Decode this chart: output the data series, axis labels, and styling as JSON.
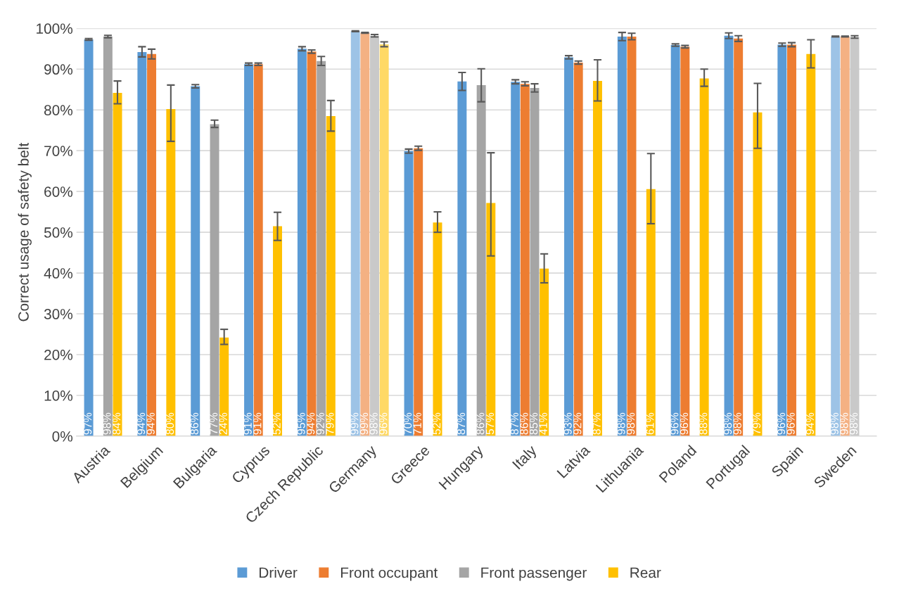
{
  "chart_data": {
    "type": "bar",
    "ylabel": "Correct usage of safety belt",
    "categories": [
      "Austria",
      "Belgium",
      "Bulgaria",
      "Cyprus",
      "Czech Republic",
      "Germany",
      "Greece",
      "Hungary",
      "Italy",
      "Latvia",
      "Lithuania",
      "Poland",
      "Portugal",
      "Spain",
      "Sweden"
    ],
    "series": [
      {
        "name": "Driver",
        "color": "#5b9bd5",
        "colors": [
          "#5b9bd5",
          "#5b9bd5",
          "#5b9bd5",
          "#5b9bd5",
          "#5b9bd5",
          "#9dc3e6",
          "#5b9bd5",
          "#5b9bd5",
          "#5b9bd5",
          "#5b9bd5",
          "#5b9bd5",
          "#5b9bd5",
          "#5b9bd5",
          "#5b9bd5",
          "#9dc3e6"
        ],
        "values": [
          97.3,
          94.2,
          85.8,
          91.2,
          95.0,
          99.3,
          69.9,
          87.0,
          86.9,
          92.9,
          98.0,
          95.9,
          98.2,
          96.0,
          98.0
        ],
        "errors": [
          0.2,
          [
            93.0,
            95.5
          ],
          0.4,
          0.3,
          0.5,
          0.1,
          0.5,
          [
            84.8,
            89.2
          ],
          0.5,
          0.4,
          1.0,
          0.3,
          0.7,
          0.4,
          0.1
        ],
        "value_labels": [
          "97%",
          "94%",
          "86%",
          "91%",
          "95%",
          "99%",
          "70%",
          "87%",
          "87%",
          "93%",
          "98%",
          "96%",
          "98%",
          "96%",
          "98%"
        ]
      },
      {
        "name": "Front occupant",
        "color": "#ed7d31",
        "colors": [
          "#ed7d31",
          "#ed7d31",
          "#ed7d31",
          "#ed7d31",
          "#ed7d31",
          "#f4b183",
          "#ed7d31",
          "#ed7d31",
          "#ed7d31",
          "#ed7d31",
          "#ed7d31",
          "#ed7d31",
          "#ed7d31",
          "#ed7d31",
          "#f4b183"
        ],
        "values": [
          null,
          93.7,
          null,
          91.2,
          94.3,
          98.9,
          70.6,
          null,
          86.4,
          91.6,
          98.0,
          95.5,
          97.5,
          96.0,
          98.0
        ],
        "errors": [
          null,
          [
            92.5,
            94.9
          ],
          null,
          0.3,
          0.4,
          0.1,
          0.5,
          null,
          0.5,
          0.4,
          0.8,
          0.3,
          0.7,
          0.5,
          0.1
        ],
        "value_labels": [
          null,
          "94%",
          null,
          "91%",
          "94%",
          "99%",
          "71%",
          null,
          "86%",
          "92%",
          "98%",
          "96%",
          "98%",
          "96%",
          "98%"
        ]
      },
      {
        "name": "Front passenger",
        "color": "#a5a5a5",
        "colors": [
          "#a5a5a5",
          "#a5a5a5",
          "#a5a5a5",
          "#a5a5a5",
          "#a5a5a5",
          "#c9c9c9",
          "#a5a5a5",
          "#a5a5a5",
          "#a5a5a5",
          "#a5a5a5",
          "#a5a5a5",
          "#a5a5a5",
          "#a5a5a5",
          "#a5a5a5",
          "#c9c9c9"
        ],
        "values": [
          98.0,
          null,
          76.5,
          null,
          92.0,
          98.2,
          null,
          86.1,
          85.4,
          null,
          null,
          null,
          null,
          null,
          97.9
        ],
        "errors": [
          0.3,
          null,
          [
            75.7,
            77.5
          ],
          null,
          [
            90.9,
            93.1
          ],
          0.3,
          null,
          [
            82.0,
            90.1
          ],
          [
            84.4,
            86.4
          ],
          null,
          null,
          null,
          null,
          null,
          0.3
        ],
        "value_labels": [
          "98%",
          null,
          "77%",
          null,
          "92%",
          "98%",
          null,
          "86%",
          "85%",
          null,
          null,
          null,
          null,
          null,
          "98%"
        ]
      },
      {
        "name": "Rear",
        "color": "#ffc000",
        "colors": [
          "#ffc000",
          "#ffc000",
          "#ffc000",
          "#ffc000",
          "#ffc000",
          "#ffd966",
          "#ffc000",
          "#ffc000",
          "#ffc000",
          "#ffc000",
          "#ffc000",
          "#ffc000",
          "#ffc000",
          "#ffc000",
          "#ffd966"
        ],
        "values": [
          84.2,
          80.2,
          24.2,
          51.5,
          78.5,
          96.1,
          52.4,
          57.2,
          41.1,
          87.1,
          60.6,
          87.7,
          79.4,
          93.7,
          null
        ],
        "errors": [
          [
            81.5,
            87.1
          ],
          [
            72.3,
            86.1
          ],
          [
            22.5,
            26.2
          ],
          [
            48.0,
            54.9
          ],
          [
            74.8,
            82.3
          ],
          0.6,
          [
            50.0,
            55.0
          ],
          [
            44.2,
            69.5
          ],
          [
            37.6,
            44.7
          ],
          [
            82.2,
            92.3
          ],
          [
            52.1,
            69.3
          ],
          [
            85.8,
            90.0
          ],
          [
            70.6,
            86.5
          ],
          [
            90.3,
            97.2
          ],
          null
        ],
        "value_labels": [
          "84%",
          "80%",
          "24%",
          "52%",
          "79%",
          "96%",
          "52%",
          "57%",
          "41%",
          "87%",
          "61%",
          "88%",
          "79%",
          "94%",
          null
        ]
      }
    ],
    "ylim": [
      0,
      100
    ],
    "yticks": [
      {
        "value": 0,
        "label": "0%"
      },
      {
        "value": 10,
        "label": "10%"
      },
      {
        "value": 20,
        "label": "20%"
      },
      {
        "value": 30,
        "label": "30%"
      },
      {
        "value": 40,
        "label": "40%"
      },
      {
        "value": 50,
        "label": "50%"
      },
      {
        "value": 60,
        "label": "60%"
      },
      {
        "value": 70,
        "label": "70%"
      },
      {
        "value": 80,
        "label": "80%"
      },
      {
        "value": 90,
        "label": "90%"
      },
      {
        "value": 100,
        "label": "100%"
      }
    ],
    "grid": "y",
    "legend": "bottom"
  }
}
